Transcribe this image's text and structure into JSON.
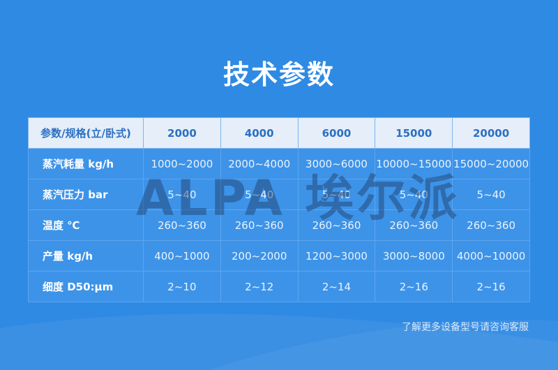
{
  "title": "技术参数",
  "table": {
    "headers": [
      "参数/规格(立/卧式)",
      "2000",
      "4000",
      "6000",
      "15000",
      "20000"
    ],
    "rows": [
      [
        "蒸汽耗量 kg/h",
        "1000~2000",
        "2000~4000",
        "3000~6000",
        "10000~15000",
        "15000~20000"
      ],
      [
        "蒸汽压力 bar",
        "5~40",
        "5~40",
        "5~40",
        "5~40",
        "5~40"
      ],
      [
        "温度 ℃",
        "260~360",
        "260~360",
        "260~360",
        "260~360",
        "260~360"
      ],
      [
        "产量 kg/h",
        "400~1000",
        "200~2000",
        "1200~3000",
        "3000~8000",
        "4000~10000"
      ],
      [
        "细度 D50:μm",
        "2~10",
        "2~12",
        "2~14",
        "2~16",
        "2~16"
      ]
    ]
  },
  "watermark": "ALPA 埃尔派",
  "note": "了解更多设备型号请咨询客服",
  "colors": {
    "background": "#2f8ae3",
    "header_bg": "#e5eef9",
    "header_text": "#2c6fc2",
    "row_bg": "#3d93e8"
  }
}
